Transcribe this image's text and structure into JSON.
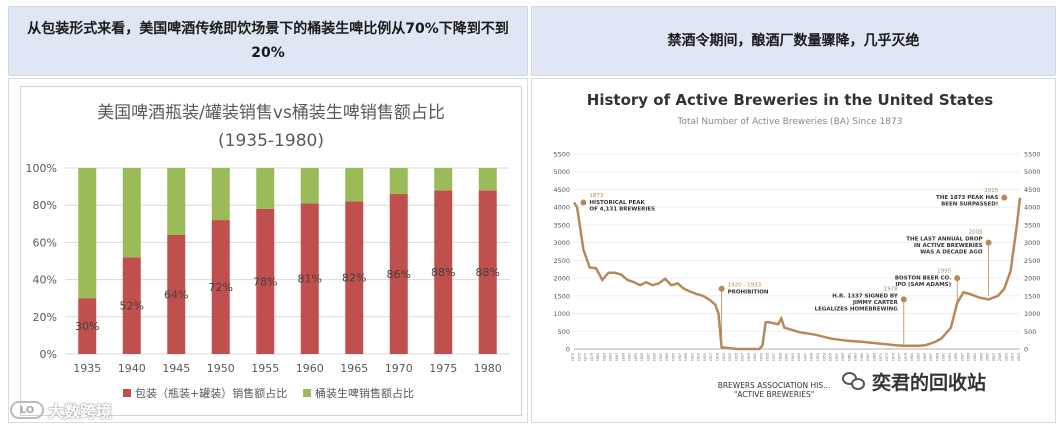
{
  "left_panel": {
    "heading": "从包装形式来看，美国啤酒传统即饮场景下的桶装生啤比例从70%下降到不到20%"
  },
  "right_panel": {
    "heading": "禁酒令期间，酿酒厂数量骤降，几乎灭绝"
  },
  "chart_data": [
    {
      "type": "bar",
      "stacked": "percent",
      "title": "美国啤酒瓶装/罐装销售vs桶装生啤销售额占比",
      "subtitle": "(1935-1980)",
      "categories": [
        "1935",
        "1940",
        "1945",
        "1950",
        "1955",
        "1960",
        "1965",
        "1970",
        "1975",
        "1980"
      ],
      "series": [
        {
          "name": "包装（瓶装+罐装）销售额占比",
          "color": "#c0504d",
          "values": [
            30,
            52,
            64,
            72,
            78,
            81,
            82,
            86,
            88,
            88
          ],
          "labels": [
            "30%",
            "52%",
            "64%",
            "72%",
            "78%",
            "81%",
            "82%",
            "86%",
            "88%",
            "88%"
          ]
        },
        {
          "name": "桶装生啤销售额占比",
          "color": "#9bbb59",
          "values": [
            70,
            48,
            36,
            28,
            22,
            19,
            18,
            14,
            12,
            12
          ]
        }
      ],
      "ylim": [
        0,
        100
      ],
      "yticks": [
        "0%",
        "20%",
        "40%",
        "60%",
        "80%",
        "100%"
      ],
      "yticks_values": [
        0,
        20,
        40,
        60,
        80,
        100
      ],
      "grid": true,
      "legend": "bottom"
    },
    {
      "type": "line",
      "title": "History of Active Breweries in the United States",
      "subtitle": "Total Number of Active Breweries (BA) Since 1873",
      "color": "#b5895a",
      "ylim": [
        0,
        5500
      ],
      "yticks": [
        0,
        500,
        1000,
        1500,
        2000,
        2500,
        3000,
        3500,
        4000,
        4500,
        5000,
        5500
      ],
      "xlim": [
        1873,
        2015
      ],
      "x": [
        1873,
        1874,
        1876,
        1878,
        1880,
        1882,
        1884,
        1886,
        1888,
        1890,
        1892,
        1894,
        1896,
        1898,
        1900,
        1902,
        1904,
        1906,
        1908,
        1910,
        1912,
        1914,
        1916,
        1918,
        1919,
        1920,
        1925,
        1932,
        1933,
        1934,
        1935,
        1937,
        1938,
        1939,
        1940,
        1945,
        1950,
        1955,
        1960,
        1965,
        1970,
        1975,
        1978,
        1980,
        1983,
        1985,
        1988,
        1990,
        1993,
        1995,
        1997,
        1999,
        2002,
        2005,
        2008,
        2010,
        2012,
        2014,
        2015
      ],
      "y": [
        4131,
        4000,
        2800,
        2300,
        2280,
        1950,
        2150,
        2150,
        2100,
        1950,
        1890,
        1800,
        1880,
        1800,
        1850,
        1980,
        1800,
        1850,
        1700,
        1620,
        1550,
        1500,
        1400,
        1250,
        1000,
        50,
        0,
        0,
        100,
        750,
        760,
        720,
        700,
        860,
        600,
        470,
        400,
        290,
        230,
        200,
        154,
        110,
        89,
        92,
        90,
        110,
        200,
        300,
        600,
        1300,
        1600,
        1550,
        1450,
        1400,
        1500,
        1700,
        2200,
        3500,
        4269
      ],
      "xtick_start": 1873,
      "xtick_step": 2,
      "annotations": [
        {
          "x": 1873,
          "y": 4131,
          "year": "1873",
          "lines": [
            "HISTORICAL PEAK",
            "OF 4,131 BREWERIES"
          ],
          "side": "right"
        },
        {
          "x": 1920,
          "y": 1700,
          "year": "1920 - 1933",
          "lines": [
            "PROHIBITION"
          ],
          "side": "right"
        },
        {
          "x": 1978,
          "y": 1400,
          "year": "1978",
          "lines": [
            "H.R. 1337 SIGNED BY",
            "JIMMY CARTER",
            "LEGALIZES HOMEBREWING"
          ],
          "side": "left"
        },
        {
          "x": 1995,
          "y": 2000,
          "year": "1995",
          "lines": [
            "BOSTON BEER CO.",
            "IPO (SAM ADAMS)"
          ],
          "side": "left"
        },
        {
          "x": 2005,
          "y": 3000,
          "year": "2005",
          "lines": [
            "THE LAST ANNUAL DROP",
            "IN ACTIVE BREWERIES",
            "WAS A DECADE AGO"
          ],
          "side": "left"
        },
        {
          "x": 2015,
          "y": 4269,
          "year": "2015",
          "lines": [
            "THE 1873 PEAK HAS",
            "BEEN SURPASSED!"
          ],
          "side": "left"
        }
      ],
      "source_lines": [
        "BREWERS ASSOCIATION HIS...",
        "\"ACTIVE BREWERIES\""
      ]
    }
  ],
  "watermarks": {
    "left_text": "大数跨境",
    "left_logo": "LO",
    "right_text": "奕君的回收站",
    "right_icon": "wechat-icon"
  }
}
